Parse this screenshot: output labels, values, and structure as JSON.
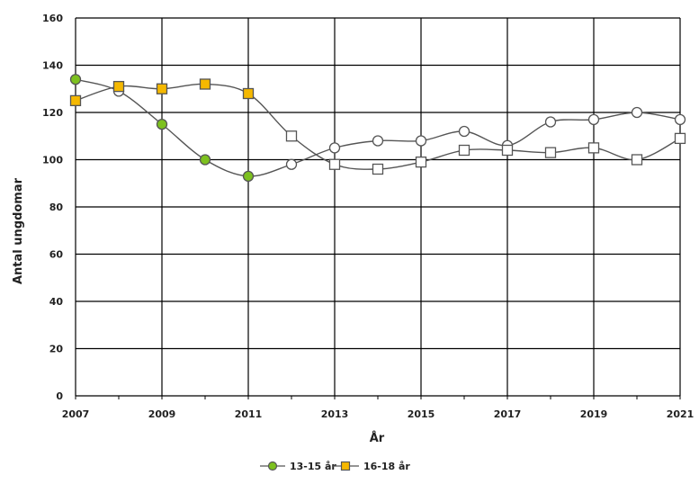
{
  "chart_data": {
    "type": "line",
    "title": "",
    "xlabel": "År",
    "ylabel": "Antal ungdomar",
    "xlim": [
      2007,
      2021
    ],
    "ylim": [
      0,
      160
    ],
    "x_ticks": [
      "2007",
      "2009",
      "2011",
      "2013",
      "2015",
      "2017",
      "2019",
      "2021"
    ],
    "y_ticks": [
      "0",
      "20",
      "40",
      "60",
      "80",
      "100",
      "120",
      "140",
      "160"
    ],
    "grid": true,
    "legend_position": "bottom",
    "x": [
      2007,
      2008,
      2009,
      2010,
      2011,
      2012,
      2013,
      2014,
      2015,
      2016,
      2017,
      2018,
      2019,
      2020,
      2021
    ],
    "series": [
      {
        "name": "13-15 år",
        "marker": "circle",
        "highlight_color": "#7dc11f",
        "values": [
          134,
          129,
          115,
          100,
          93,
          98,
          105,
          108,
          108,
          112,
          106,
          116,
          117,
          120,
          117
        ],
        "highlighted": [
          true,
          false,
          true,
          true,
          true,
          false,
          false,
          false,
          false,
          false,
          false,
          false,
          false,
          false,
          false
        ]
      },
      {
        "name": "16-18 år",
        "marker": "square",
        "highlight_color": "#f5b800",
        "values": [
          125,
          131,
          130,
          132,
          128,
          110,
          98,
          96,
          99,
          104,
          104,
          103,
          105,
          100,
          109
        ],
        "highlighted": [
          true,
          true,
          true,
          true,
          true,
          false,
          false,
          false,
          false,
          false,
          false,
          false,
          false,
          false,
          false
        ]
      }
    ]
  }
}
